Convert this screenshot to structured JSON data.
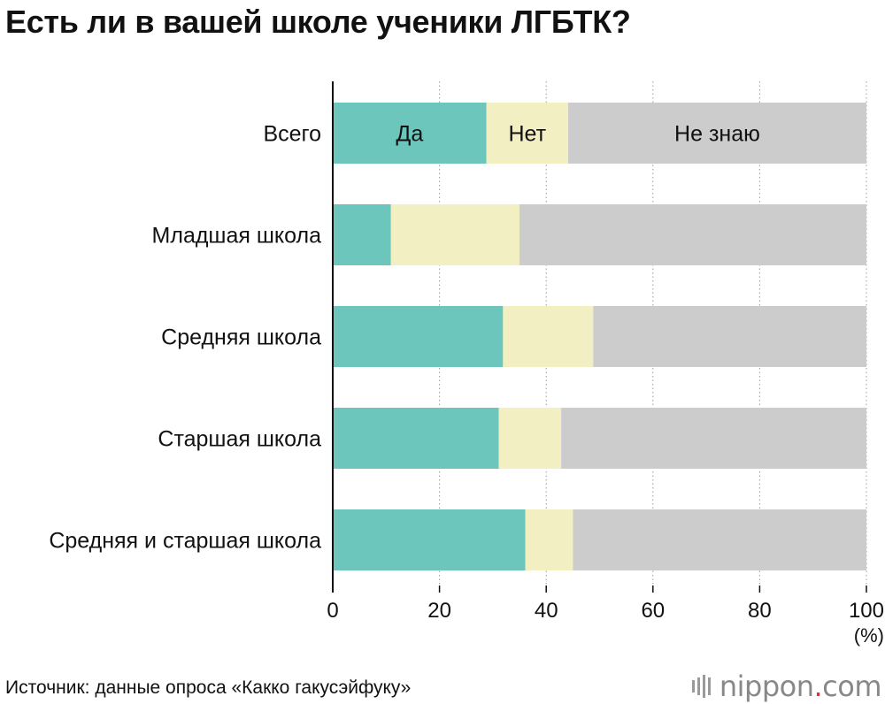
{
  "title": "Есть ли в вашей школе ученики ЛГБТК?",
  "source": "Источник: данные опроса «Какко гакусэйфуку»",
  "logo": {
    "name": "nippon",
    "dot": ".",
    "tld": "com"
  },
  "chart_data": {
    "type": "bar",
    "orientation": "horizontal",
    "stacked": true,
    "title": "Есть ли в вашей школе ученики ЛГБТК?",
    "xlabel": "(%)",
    "ylabel": "",
    "xlim": [
      0,
      100
    ],
    "xticks": [
      "0",
      "20",
      "40",
      "60",
      "80",
      "100"
    ],
    "grid": true,
    "categories": [
      "Всего",
      "Младшая школа",
      "Средняя школа",
      "Старшая школа",
      "Средняя и старшая школа"
    ],
    "series": [
      {
        "name": "Да",
        "color": "#6cc6bb",
        "values": [
          28.8,
          10.9,
          31.9,
          31.1,
          36.1
        ]
      },
      {
        "name": "Нет",
        "color": "#f2efc3",
        "values": [
          15.3,
          24.1,
          16.9,
          11.7,
          8.9
        ]
      },
      {
        "name": "Не знаю",
        "color": "#cccccc",
        "values": [
          55.9,
          65.0,
          51.2,
          57.2,
          55.0
        ]
      }
    ]
  }
}
